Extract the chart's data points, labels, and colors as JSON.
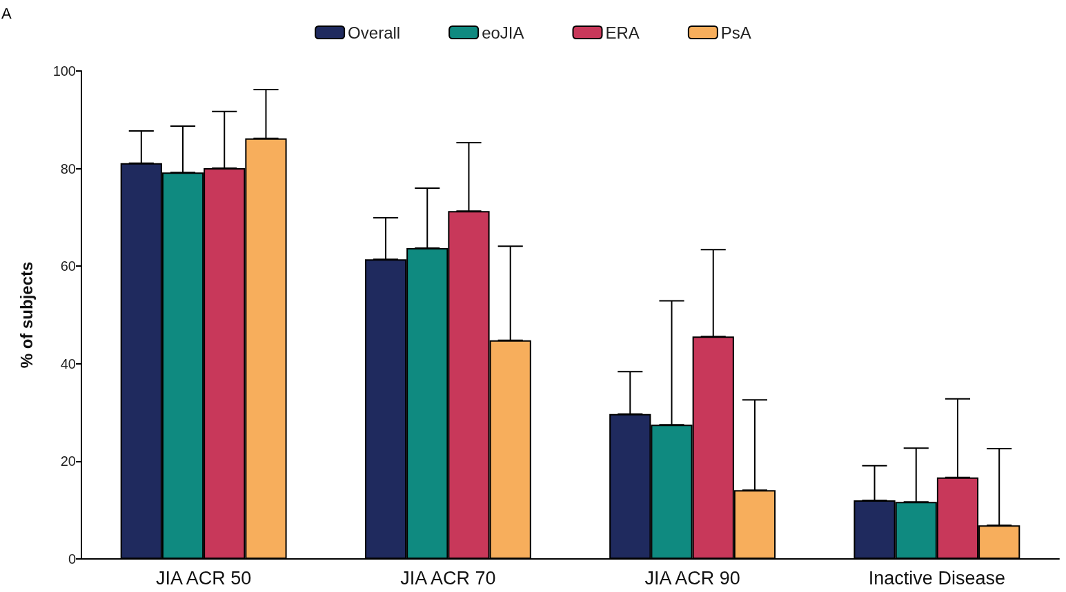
{
  "chart_data": {
    "type": "bar",
    "ylabel": "% of subjects",
    "annotations": [
      "A"
    ],
    "categories": [
      "JIA ACR 50",
      "JIA ACR 70",
      "JIA ACR 90",
      "Inactive Disease"
    ],
    "series": [
      {
        "name": "Overall",
        "color": "#1f2a5e",
        "values": [
          81.1,
          61.4,
          29.7,
          12.0
        ],
        "errors": [
          [
            81.1,
            87.7
          ],
          [
            61.4,
            69.9
          ],
          [
            29.7,
            38.4
          ],
          [
            12.0,
            19.1
          ]
        ]
      },
      {
        "name": "eoJIA",
        "color": "#0f8a80",
        "values": [
          79.2,
          63.7,
          27.5,
          11.7
        ],
        "errors": [
          [
            79.2,
            88.7
          ],
          [
            63.7,
            76.0
          ],
          [
            27.5,
            52.9
          ],
          [
            11.7,
            22.7
          ]
        ]
      },
      {
        "name": "ERA",
        "color": "#c8385a",
        "values": [
          80.1,
          71.3,
          45.6,
          16.7
        ],
        "errors": [
          [
            80.1,
            91.7
          ],
          [
            71.3,
            85.3
          ],
          [
            45.6,
            63.4
          ],
          [
            16.7,
            32.8
          ]
        ]
      },
      {
        "name": "PsA",
        "color": "#f7ae5c",
        "values": [
          86.2,
          44.8,
          14.1,
          6.9
        ],
        "errors": [
          [
            86.2,
            96.2
          ],
          [
            44.8,
            64.1
          ],
          [
            14.1,
            32.6
          ],
          [
            6.9,
            22.6
          ]
        ]
      }
    ],
    "ylim": [
      0,
      100
    ],
    "yticks": [
      0,
      20,
      40,
      60,
      80,
      100
    ],
    "grid": false,
    "legend": "top"
  }
}
